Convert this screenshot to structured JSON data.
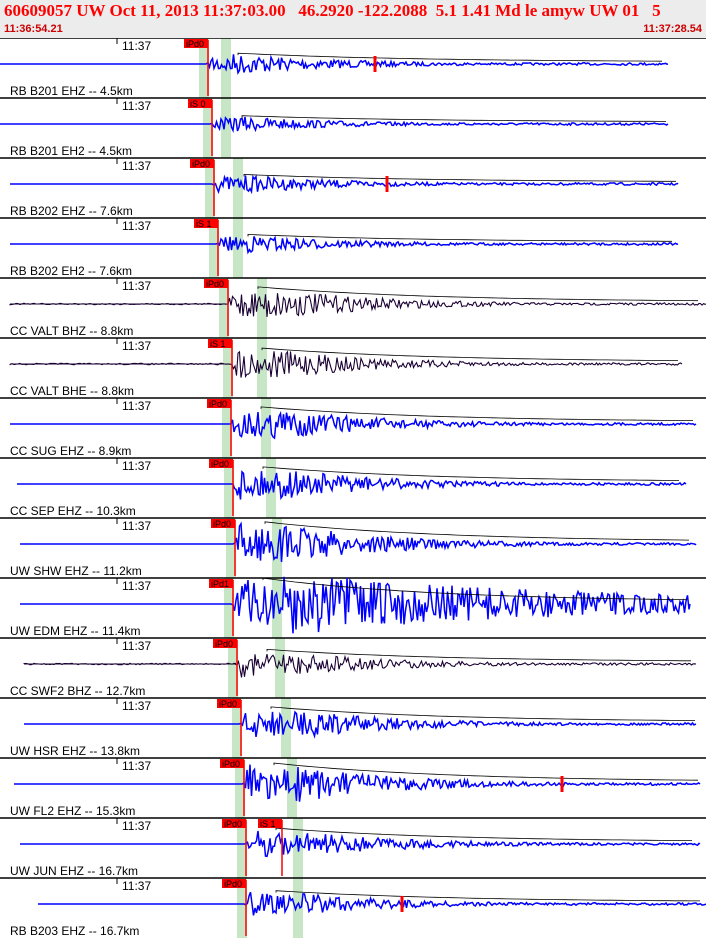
{
  "header": {
    "title": "60609057 UW Oct 11, 2013 11:37:03.00   46.2920 -122.2088  5.1 1.41 Md le amyw UW 01   5",
    "start_time": "11:36:54.21",
    "end_time": "11:37:28.54"
  },
  "time_tick_label": "11:37",
  "colors": {
    "trace_blue": "#0000ff",
    "trace_dark": "#1a0033",
    "pick_red": "#ff0000",
    "band_green": "#b8e0b8",
    "header_bg": "#ececec"
  },
  "traces": [
    {
      "label": "RB B201 EHZ -- 4.5km",
      "pick": "iPd0",
      "color": "blue",
      "amp": 0.35
    },
    {
      "label": "RB B201 EH2 -- 4.5km",
      "pick": "iS 0",
      "color": "blue",
      "amp": 0.25
    },
    {
      "label": "RB B202 EHZ -- 7.6km",
      "pick": "iPd0",
      "color": "blue",
      "amp": 0.3
    },
    {
      "label": "RB B202 EH2 -- 7.6km",
      "pick": "iS 1",
      "color": "blue",
      "amp": 0.3
    },
    {
      "label": "CC VALT BHZ -- 8.8km",
      "pick": "iPd0",
      "color": "dark",
      "amp": 0.6
    },
    {
      "label": "CC VALT BHE -- 8.8km",
      "pick": "iS 1",
      "color": "dark",
      "amp": 0.55
    },
    {
      "label": "CC SUG EHZ -- 8.9km",
      "pick": "iPd0",
      "color": "blue",
      "amp": 0.6
    },
    {
      "label": "CC SEP EHZ -- 10.3km",
      "pick": "iPd0",
      "color": "blue",
      "amp": 0.6
    },
    {
      "label": "UW SHW EHZ -- 11.2km",
      "pick": "iPd0",
      "color": "blue",
      "amp": 0.8
    },
    {
      "label": "UW EDM EHZ -- 11.4km",
      "pick": "iPd1",
      "color": "blue",
      "amp": 0.95
    },
    {
      "label": "CC SWF2 BHZ -- 12.7km",
      "pick": "iPd0",
      "color": "dark",
      "amp": 0.5
    },
    {
      "label": "UW HSR EHZ -- 13.8km",
      "pick": "iPd0",
      "color": "blue",
      "amp": 0.6
    },
    {
      "label": "UW FL2 EHZ -- 15.3km",
      "pick": "iPd0",
      "color": "blue",
      "amp": 0.75
    },
    {
      "label": "UW JUN EHZ -- 16.7km",
      "pick": "iPd0",
      "pick2": "iS 1",
      "color": "blue",
      "amp": 0.55
    },
    {
      "label": "RB B203 EHZ -- 16.7km",
      "pick": "iPd0",
      "color": "blue",
      "amp": 0.45
    }
  ]
}
